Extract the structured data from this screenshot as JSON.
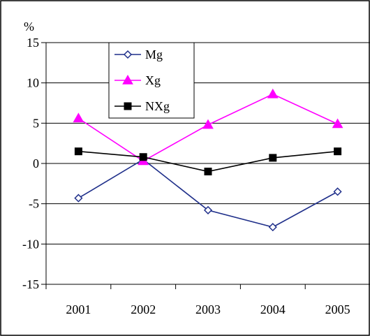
{
  "chart_data": {
    "type": "line",
    "title": "",
    "xlabel": "",
    "ylabel": "%",
    "categories": [
      "2001",
      "2002",
      "2003",
      "2004",
      "2005"
    ],
    "ylim": [
      -15,
      15
    ],
    "yticks": [
      15,
      10,
      5,
      0,
      -5,
      -10,
      -15
    ],
    "grid": true,
    "legend": "top-left",
    "series": [
      {
        "name": "Mg",
        "values": [
          -4.3,
          0.5,
          -5.8,
          -7.9,
          -3.5
        ],
        "color": "#1f2f8a",
        "marker": "open-diamond"
      },
      {
        "name": "Xg",
        "values": [
          5.6,
          0.3,
          4.8,
          8.6,
          4.9
        ],
        "color": "#ff00ff",
        "marker": "filled-triangle"
      },
      {
        "name": "NXg",
        "values": [
          1.5,
          0.8,
          -1.0,
          0.7,
          1.5
        ],
        "color": "#000000",
        "marker": "filled-square"
      }
    ]
  }
}
